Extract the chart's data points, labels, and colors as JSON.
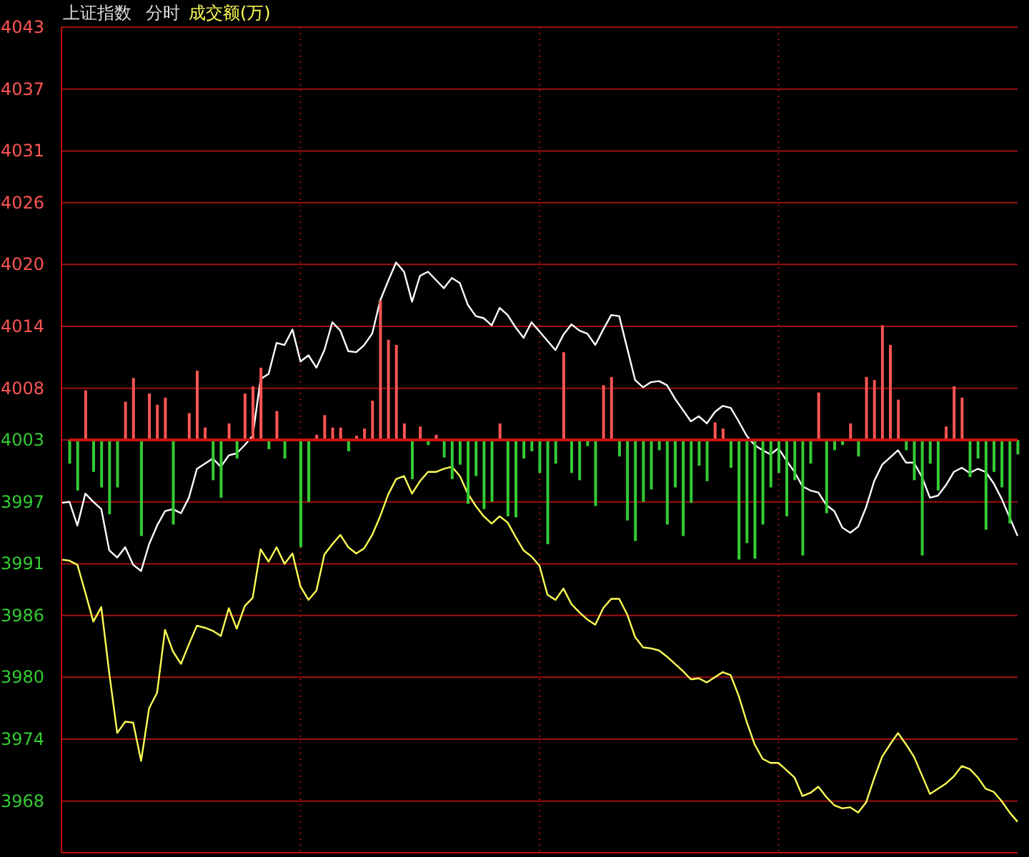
{
  "chart_data": [
    {
      "type": "line",
      "title": "上证指数",
      "subtitle": "分时",
      "annotations": [
        "成交额(万)"
      ],
      "categories": [
        null,
        null,
        null,
        null,
        null,
        null,
        null,
        null,
        null,
        null,
        null,
        null,
        null,
        null,
        null,
        null,
        null,
        null,
        null,
        null,
        null,
        null,
        null,
        null,
        null,
        null,
        null,
        null,
        null,
        null,
        null,
        null,
        null,
        null,
        null,
        null,
        null,
        null,
        null,
        null,
        null,
        null,
        null,
        null,
        null,
        null,
        null,
        null,
        null,
        null,
        null,
        null,
        null,
        null,
        null,
        null,
        null,
        null,
        null,
        null,
        null,
        null,
        null,
        null,
        null,
        null,
        null,
        null,
        null,
        null,
        null,
        null,
        null,
        null,
        null,
        null,
        null,
        null,
        null,
        null,
        null,
        null,
        null,
        null,
        null,
        null,
        null,
        null,
        null,
        null,
        null,
        null,
        null,
        null,
        null,
        null,
        null,
        null,
        null,
        null,
        null,
        null,
        null,
        null,
        null,
        null,
        null,
        null,
        null,
        null,
        null,
        null,
        null,
        null,
        null,
        null,
        null,
        null,
        null,
        null,
        null
      ],
      "ylim": [
        3963,
        4043
      ],
      "yticks": [
        3968,
        3974,
        3980,
        3986,
        3991,
        3997,
        4003,
        4008,
        4014,
        4020,
        4026,
        4031,
        4037,
        4043
      ],
      "tick_labels": "y",
      "grid": true,
      "legend": false,
      "series": [
        {
          "color": "#ffffff",
          "values": [
            3996.9,
            3997,
            3994.7,
            3997.8,
            3997,
            3996.3,
            3992.3,
            3991.6,
            3992.6,
            3990.9,
            3990.3,
            3992.9,
            3994.7,
            3996.1,
            3996.3,
            3995.9,
            3997.4,
            4000.2,
            4000.7,
            4001.2,
            4000.4,
            4001.5,
            4001.7,
            4002.5,
            4003.4,
            4008.9,
            4009.4,
            4012.4,
            4012.2,
            4013.7,
            4010.6,
            4011.2,
            4010,
            4011.7,
            4014.4,
            4013.6,
            4011.6,
            4011.5,
            4012.2,
            4013.3,
            4016.5,
            4018.4,
            4020.2,
            4019.3,
            4016.4,
            4018.9,
            4019.3,
            4018.5,
            4017.7,
            4018.7,
            4018.2,
            4016.1,
            4015,
            4014.8,
            4014.1,
            4015.8,
            4015.1,
            4013.9,
            4012.9,
            4014.4,
            4013.5,
            4012.6,
            4011.7,
            4013.2,
            4014.2,
            4013.6,
            4013.3,
            4012.2,
            4013.7,
            4015.1,
            4015,
            4011.9,
            4008.8,
            4008.1,
            4008.6,
            4008.7,
            4008.3,
            4007,
            4005.9,
            4004.8,
            4005.3,
            4004.6,
            4005.7,
            4006.3,
            4006.1,
            4004.8,
            4003.4,
            4002.5,
            4002,
            4001.6,
            4002.2,
            4001,
            3999.9,
            3998.5,
            3998.1,
            3997.9,
            3996.7,
            3996.1,
            3994.5,
            3994,
            3994.6,
            3996.5,
            3999,
            4000.6,
            4001.3,
            4002,
            4000.8,
            4000.8,
            3999.4,
            3997.4,
            3997.6,
            3998.6,
            3999.9,
            4000.3,
            3999.8,
            4000.2,
            3999.9,
            3998.8,
            3997.3,
            3995.5,
            3993.7
          ]
        },
        {
          "color": "#ffff55",
          "values": [
            3991.4,
            3991.3,
            3990.9,
            3988.2,
            3985.4,
            3986.8,
            3980.4,
            3974.6,
            3975.7,
            3975.6,
            3971.9,
            3977,
            3978.5,
            3984.6,
            3982.5,
            3981.3,
            3983.2,
            3985,
            3984.8,
            3984.5,
            3984,
            3986.7,
            3984.7,
            3986.9,
            3987.7,
            3992.4,
            3991.2,
            3992.6,
            3991,
            3992,
            3988.8,
            3987.5,
            3988.4,
            3991.9,
            3992.9,
            3993.8,
            3992.6,
            3992,
            3992.5,
            3993.8,
            3995.6,
            3997.7,
            3999.2,
            3999.5,
            3997.8,
            3999,
            3999.9,
            3999.9,
            4000.2,
            4000.4,
            3999.5,
            3997.8,
            3996.6,
            3995.6,
            3994.9,
            3995.6,
            3995,
            3993.6,
            3992.3,
            3991.7,
            3990.8,
            3988,
            3987.5,
            3988.6,
            3987.1,
            3986.3,
            3985.6,
            3985.1,
            3986.7,
            3987.6,
            3987.6,
            3986.1,
            3983.9,
            3982.9,
            3982.8,
            3982.6,
            3982,
            3981.3,
            3980.6,
            3979.8,
            3979.9,
            3979.5,
            3980,
            3980.5,
            3980.2,
            3978.2,
            3975.7,
            3973.5,
            3972.1,
            3971.7,
            3971.7,
            3971,
            3970.3,
            3968.5,
            3968.8,
            3969.4,
            3968.4,
            3967.6,
            3967.3,
            3967.4,
            3966.9,
            3967.9,
            3970.2,
            3972.3,
            3973.5,
            3974.6,
            3973.5,
            3972.3,
            3970.5,
            3968.7,
            3969.2,
            3969.7,
            3970.4,
            3971.4,
            3971.1,
            3970.3,
            3969.2,
            3968.9,
            3968,
            3966.9,
            3966
          ]
        }
      ]
    },
    {
      "type": "bar",
      "tick_labels": false,
      "ylim": [
        3963,
        4043
      ],
      "yticks": [
        3968,
        3974,
        3980,
        3986,
        3991,
        3997,
        4003,
        4008,
        4014,
        4020,
        4026,
        4031,
        4037,
        4043
      ],
      "ref_lines": [
        {
          "axis": "y",
          "value": 4003,
          "color": "#d01010"
        }
      ],
      "base": [
        4003,
        4003,
        4003,
        4003,
        4003,
        4003,
        4003,
        4003,
        4003,
        4003,
        4003,
        4003,
        4003,
        4003,
        null,
        4003,
        4003,
        4003,
        4003,
        4003,
        4003,
        4003,
        4003,
        4003,
        4003,
        4003,
        4003,
        4003,
        null,
        4003,
        4003,
        4003,
        4003,
        4003,
        4003,
        4003,
        4003,
        4003,
        4003,
        4003,
        4003,
        4003,
        4003,
        4003,
        4003,
        4003,
        4003,
        4003,
        4003,
        4003,
        4003,
        4003,
        4003,
        4003,
        4003,
        4003,
        4003,
        4003,
        4003,
        4003,
        4003,
        4003,
        4003,
        4003,
        4003,
        4003,
        4003,
        4003,
        4003,
        4003,
        4003,
        4003,
        4003,
        4003,
        4003,
        4003,
        4003,
        4003,
        4003,
        4003,
        4003,
        4003,
        4003,
        4003,
        4003,
        4003,
        4003,
        4003,
        4003,
        4003,
        4003,
        4003,
        4003,
        4003,
        4003,
        4003,
        4003,
        4003,
        4003,
        4003,
        4003,
        4003,
        4003,
        4003,
        4003,
        4003,
        4003,
        4003,
        4003,
        4003,
        4003,
        4003,
        4003,
        4003,
        4003,
        4003,
        4003,
        4003,
        4003,
        4003
      ],
      "categories": [
        null,
        null,
        null,
        null,
        null,
        null,
        null,
        null,
        null,
        null,
        null,
        null,
        null,
        null,
        null,
        null,
        null,
        null,
        null,
        null,
        null,
        null,
        null,
        null,
        null,
        null,
        null,
        null,
        null,
        null,
        null,
        null,
        null,
        null,
        null,
        null,
        null,
        null,
        null,
        null,
        null,
        null,
        null,
        null,
        null,
        null,
        null,
        null,
        null,
        null,
        null,
        null,
        null,
        null,
        null,
        null,
        null,
        null,
        null,
        null,
        null,
        null,
        null,
        null,
        null,
        null,
        null,
        null,
        null,
        null,
        null,
        null,
        null,
        null,
        null,
        null,
        null,
        null,
        null,
        null,
        null,
        null,
        null,
        null,
        null,
        null,
        null,
        null,
        null,
        null,
        null,
        null,
        null,
        null,
        null,
        null,
        null,
        null,
        null,
        null,
        null,
        null,
        null,
        null,
        null,
        null,
        null,
        null,
        null,
        null,
        null,
        null,
        null,
        null,
        null,
        null,
        null,
        null,
        null,
        null
      ],
      "values": [
        -2.3,
        -4.9,
        4.8,
        -3.1,
        -4.6,
        -7.2,
        -4.6,
        3.7,
        6,
        -9.3,
        4.5,
        3.4,
        4.1,
        -8.2,
        null,
        2.6,
        6.7,
        1.2,
        -3.9,
        -5.6,
        1.6,
        -1.8,
        4.5,
        5.2,
        7,
        -0.9,
        2.8,
        -1.8,
        null,
        -10.4,
        -6,
        0.5,
        2.4,
        1.2,
        1.2,
        -1.1,
        0.4,
        1.1,
        3.8,
        13.5,
        9.7,
        9.2,
        1.6,
        -3.8,
        1.3,
        -0.5,
        0.5,
        -1.7,
        -3.8,
        -2.4,
        -6.2,
        -3.5,
        -6.7,
        -6,
        1.6,
        -7.4,
        -7.5,
        -1.8,
        -1.1,
        -3.2,
        -10.1,
        -2.3,
        8.5,
        -3.2,
        -3.9,
        -0.6,
        -6.4,
        5.3,
        6.1,
        -1.6,
        -7.8,
        -9.8,
        -6,
        -4.8,
        -1,
        -8.2,
        -4.6,
        -9.3,
        -6.1,
        -2.5,
        -4,
        1.7,
        1.1,
        -2.7,
        -11.6,
        -10,
        -11.5,
        -8.2,
        -4.6,
        -3.2,
        -7.4,
        -3.9,
        -11.2,
        -2.3,
        4.6,
        -7.1,
        -1,
        -0.5,
        1.6,
        -1.6,
        6.1,
        5.8,
        11.1,
        9.2,
        3.9,
        -1,
        -3.9,
        -11.2,
        -2.3,
        -4.9,
        1.3,
        5.2,
        4.1,
        -3.6,
        -1.8,
        -8.7,
        -3.1,
        -4.6,
        -8.1,
        -1.4
      ],
      "colors": [
        "#33cc33",
        "#33cc33",
        "#ff5555",
        "#33cc33",
        "#33cc33",
        "#33cc33",
        "#33cc33",
        "#ff5555",
        "#ff5555",
        "#33cc33",
        "#ff5555",
        "#ff5555",
        "#ff5555",
        "#33cc33",
        "#33cc33",
        "#ff5555",
        "#ff5555",
        "#ff5555",
        "#33cc33",
        "#33cc33",
        "#ff5555",
        "#33cc33",
        "#ff5555",
        "#ff5555",
        "#ff5555",
        "#33cc33",
        "#ff5555",
        "#33cc33",
        "#33cc33",
        "#33cc33",
        "#33cc33",
        "#ff5555",
        "#ff5555",
        "#ff5555",
        "#ff5555",
        "#33cc33",
        "#ff5555",
        "#ff5555",
        "#ff5555",
        "#ff5555",
        "#ff5555",
        "#ff5555",
        "#ff5555",
        "#33cc33",
        "#ff5555",
        "#33cc33",
        "#ff5555",
        "#33cc33",
        "#33cc33",
        "#33cc33",
        "#33cc33",
        "#33cc33",
        "#33cc33",
        "#33cc33",
        "#ff5555",
        "#33cc33",
        "#33cc33",
        "#33cc33",
        "#33cc33",
        "#33cc33",
        "#33cc33",
        "#33cc33",
        "#ff5555",
        "#33cc33",
        "#33cc33",
        "#33cc33",
        "#33cc33",
        "#ff5555",
        "#ff5555",
        "#33cc33",
        "#33cc33",
        "#33cc33",
        "#33cc33",
        "#33cc33",
        "#33cc33",
        "#33cc33",
        "#33cc33",
        "#33cc33",
        "#33cc33",
        "#33cc33",
        "#33cc33",
        "#ff5555",
        "#ff5555",
        "#33cc33",
        "#33cc33",
        "#33cc33",
        "#33cc33",
        "#33cc33",
        "#33cc33",
        "#33cc33",
        "#33cc33",
        "#33cc33",
        "#33cc33",
        "#33cc33",
        "#ff5555",
        "#33cc33",
        "#33cc33",
        "#33cc33",
        "#ff5555",
        "#33cc33",
        "#ff5555",
        "#ff5555",
        "#ff5555",
        "#ff5555",
        "#ff5555",
        "#33cc33",
        "#33cc33",
        "#33cc33",
        "#33cc33",
        "#33cc33",
        "#ff5555",
        "#ff5555",
        "#ff5555",
        "#33cc33",
        "#33cc33",
        "#33cc33",
        "#33cc33",
        "#33cc33",
        "#33cc33",
        "#33cc33"
      ]
    }
  ]
}
